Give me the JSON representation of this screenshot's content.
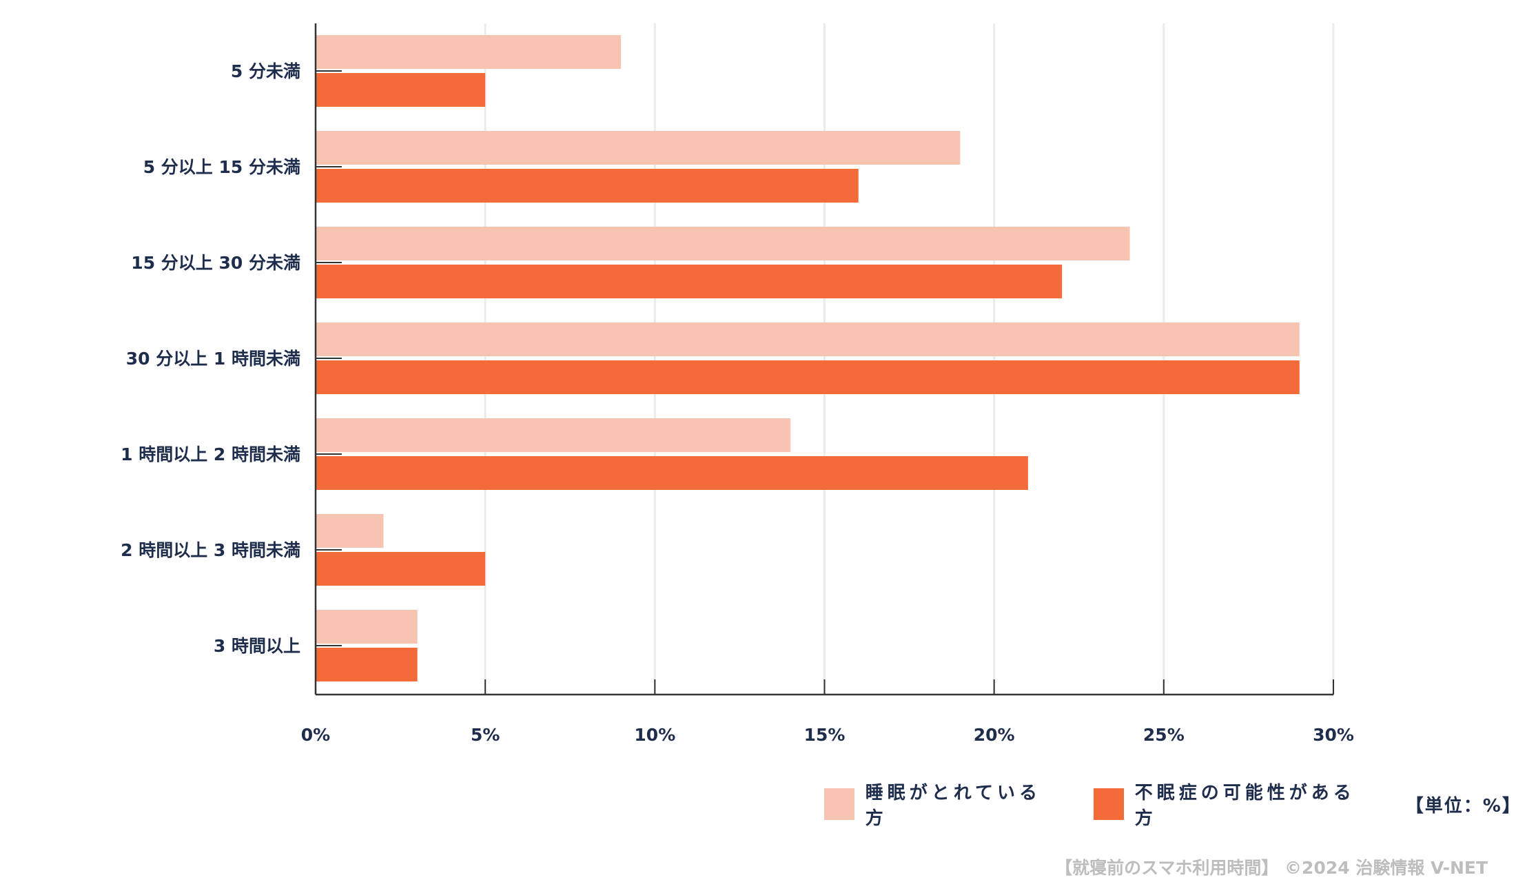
{
  "chart_data": {
    "type": "bar",
    "orientation": "horizontal",
    "categories": [
      "5 分未満",
      "5 分以上 15 分未満",
      "15 分以上 30 分未満",
      "30 分以上 1 時間未満",
      "1 時間以上 2 時間未満",
      "2 時間以上 3 時間未満",
      "3 時間以上"
    ],
    "series": [
      {
        "name": "睡眠がとれている方",
        "color": "#f7c4b2",
        "values": [
          9,
          19,
          24,
          29,
          14,
          2,
          3
        ]
      },
      {
        "name": "不眠症の可能性がある方",
        "color": "#f46b3a",
        "values": [
          5,
          16,
          22,
          29,
          21,
          5,
          3
        ]
      }
    ],
    "xlim": [
      0,
      30
    ],
    "xticks": [
      "0%",
      "5%",
      "10%",
      "15%",
      "20%",
      "25%",
      "30%"
    ],
    "grid": true,
    "legend_position": "bottom-right",
    "unit_label": "【単位：%】"
  },
  "source": "【就寝前のスマホ利用時間】 ©2024 治験情報 V-NET"
}
